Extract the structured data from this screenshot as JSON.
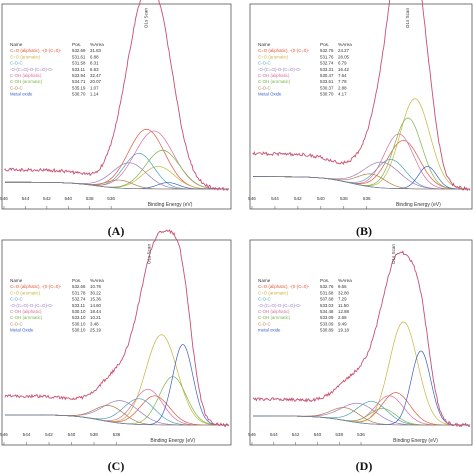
{
  "chart_data": [
    {
      "panel": "(A)",
      "type": "line",
      "xlabel": "Binding Energy (eV)",
      "xlim": [
        546,
        525
      ],
      "x_ticks": [
        "546",
        "544",
        "542",
        "540",
        "538",
        "536"
      ],
      "peak_label": "O1s Scan",
      "peak_label_x": 532.6,
      "legend_headers": [
        "Name",
        "Pos.",
        "%Area"
      ],
      "background": 0.12,
      "components": [
        {
          "name": "C=O (aliphatic), -(0-(C=0)-",
          "pos": "532.69",
          "area": "31.83",
          "color": "#e0563a",
          "center": 532.7,
          "height": 0.37,
          "width": 1.7
        },
        {
          "name": "C=O (aromatic)",
          "pos": "531.61",
          "area": "6.88",
          "color": "#c8b43c",
          "center": 531.6,
          "height": 0.14,
          "width": 1.5
        },
        {
          "name": "C-O-C",
          "pos": "531.58",
          "area": "8.31",
          "color": "#4aa3b8",
          "center": 533.4,
          "height": 0.22,
          "width": 1.4
        },
        {
          "name": "-O-(C=O)-O-(C=O)-O-",
          "pos": "533.11",
          "area": "6.63",
          "color": "#9c7bc0",
          "center": 534.3,
          "height": 0.16,
          "width": 1.6
        },
        {
          "name": "C-OH (aliphatic)",
          "pos": "533.94",
          "area": "32.47",
          "color": "#d86e9e",
          "center": 532.0,
          "height": 0.36,
          "width": 1.8
        },
        {
          "name": "C-OH (aromatic)",
          "pos": "534.71",
          "area": "20.07",
          "color": "#7ab34a",
          "center": 531.2,
          "height": 0.24,
          "width": 1.6
        },
        {
          "name": "C-O-C",
          "pos": "535.19",
          "area": "1.07",
          "color": "#b07b4a",
          "center": 535.2,
          "height": 0.05,
          "width": 1.2
        },
        {
          "name": "Metal oxide",
          "pos": "530.70",
          "area": "1.14",
          "color": "#3a5fc8",
          "center": 530.7,
          "height": 0.04,
          "width": 1.0
        }
      ]
    },
    {
      "panel": "(B)",
      "type": "line",
      "xlabel": "Binding Energy (eV)",
      "xlim": [
        546,
        527
      ],
      "x_ticks": [
        "546",
        "544",
        "542",
        "540",
        "538",
        "536"
      ],
      "peak_label": "O1s Scan",
      "peak_label_x": 532.3,
      "legend_headers": [
        "Name",
        "Pos.",
        "%Area"
      ],
      "background": 0.22,
      "components": [
        {
          "name": "C=O (aliphatic), -(0-(C=0)-",
          "pos": "532.75",
          "area": "24.27",
          "color": "#e0563a",
          "center": 532.8,
          "height": 0.3,
          "width": 1.4
        },
        {
          "name": "C=O (aromatic)",
          "pos": "531.76",
          "area": "28.05",
          "color": "#c8b43c",
          "center": 531.8,
          "height": 0.56,
          "width": 1.3
        },
        {
          "name": "C-O-C",
          "pos": "532.74",
          "area": "6.79",
          "color": "#4aa3b8",
          "center": 533.9,
          "height": 0.18,
          "width": 1.3
        },
        {
          "name": "-O-(C=O)-O-(C=O)-O-",
          "pos": "533.31",
          "area": "16.42",
          "color": "#9c7bc0",
          "center": 534.7,
          "height": 0.16,
          "width": 1.6
        },
        {
          "name": "C-OH (aliphatic)",
          "pos": "530.47",
          "area": "7.64",
          "color": "#d86e9e",
          "center": 533.2,
          "height": 0.34,
          "width": 1.3
        },
        {
          "name": "C-OH (aromatic)",
          "pos": "533.61",
          "area": "7.78",
          "color": "#7ab34a",
          "center": 532.4,
          "height": 0.44,
          "width": 1.2
        },
        {
          "name": "C-O-C",
          "pos": "530.37",
          "area": "2.88",
          "color": "#b07b4a",
          "center": 535.6,
          "height": 0.08,
          "width": 1.2
        },
        {
          "name": "Metal Oxide",
          "pos": "530.70",
          "area": "4.17",
          "color": "#3a5fc8",
          "center": 530.7,
          "height": 0.14,
          "width": 0.8
        }
      ]
    },
    {
      "panel": "(C)",
      "type": "line",
      "xlabel": "Binding Energy (eV)",
      "xlim": [
        546,
        526
      ],
      "x_ticks": [
        "546",
        "544",
        "542",
        "540",
        "538",
        "536"
      ],
      "peak_label": "O1s Scan",
      "peak_label_x": 533.0,
      "legend_headers": [
        "Name",
        "Pos.",
        "%Area"
      ],
      "background": 0.18,
      "components": [
        {
          "name": "C=O (aliphatic), -(0-(C=0)-",
          "pos": "532.66",
          "area": "10.76",
          "color": "#e0563a",
          "center": 532.6,
          "height": 0.18,
          "width": 1.3
        },
        {
          "name": "C=O (aromatic)",
          "pos": "531.78",
          "area": "30.22",
          "color": "#c8b43c",
          "center": 532.0,
          "height": 0.56,
          "width": 1.4
        },
        {
          "name": "C-O-C",
          "pos": "532.74",
          "area": "15.36",
          "color": "#4aa3b8",
          "center": 534.0,
          "height": 0.16,
          "width": 1.4
        },
        {
          "name": "-O-(C=O)-O-(C=O)-O-",
          "pos": "533.11",
          "area": "14.60",
          "color": "#9c7bc0",
          "center": 535.6,
          "height": 0.14,
          "width": 1.6
        },
        {
          "name": "C-OH (aliphatic)",
          "pos": "530.10",
          "area": "18.44",
          "color": "#d86e9e",
          "center": 533.2,
          "height": 0.22,
          "width": 1.3
        },
        {
          "name": "C-OH (aromatic)",
          "pos": "533.10",
          "area": "10.21",
          "color": "#7ab34a",
          "center": 531.0,
          "height": 0.3,
          "width": 1.2
        },
        {
          "name": "C-O-C",
          "pos": "530.10",
          "area": "3.48",
          "color": "#b07b4a",
          "center": 536.6,
          "height": 0.1,
          "width": 1.3
        },
        {
          "name": "Metal Oxide",
          "pos": "530.10",
          "area": "25.19",
          "color": "#3a5fc8",
          "center": 530.1,
          "height": 0.5,
          "width": 0.9
        }
      ]
    },
    {
      "panel": "(D)",
      "type": "line",
      "xlabel": "Binding Energy (eV)",
      "xlim": [
        546,
        526
      ],
      "x_ticks": [
        "546",
        "544",
        "542",
        "540",
        "538",
        "536"
      ],
      "peak_label": "O1s Scan",
      "peak_label_x": 532.9,
      "legend_headers": [
        "Name",
        "Pos.",
        "%Area"
      ],
      "background": 0.16,
      "components": [
        {
          "name": "C=O (aliphatic), -(0-(C=0)-",
          "pos": "532.76",
          "area": "9.66",
          "color": "#e0563a",
          "center": 532.8,
          "height": 0.2,
          "width": 1.3
        },
        {
          "name": "C=O (aromatic)",
          "pos": "531.68",
          "area": "32.80",
          "color": "#c8b43c",
          "center": 532.1,
          "height": 0.64,
          "width": 1.3
        },
        {
          "name": "C-O-C",
          "pos": "507.68",
          "area": "7.29",
          "color": "#4aa3b8",
          "center": 535.0,
          "height": 0.14,
          "width": 1.4
        },
        {
          "name": "-O-(C=O)-O-(C=O)-O-",
          "pos": "533.03",
          "area": "11.50",
          "color": "#9c7bc0",
          "center": 536.2,
          "height": 0.12,
          "width": 1.6
        },
        {
          "name": "C-OH (aliphatic)",
          "pos": "534.48",
          "area": "12.88",
          "color": "#d86e9e",
          "center": 533.4,
          "height": 0.18,
          "width": 1.3
        },
        {
          "name": "C-OH (aromatic)",
          "pos": "533.09",
          "area": "2.68",
          "color": "#7ab34a",
          "center": 534.0,
          "height": 0.1,
          "width": 1.2
        },
        {
          "name": "C-O-C",
          "pos": "533.09",
          "area": "9.49",
          "color": "#b07b4a",
          "center": 537.4,
          "height": 0.08,
          "width": 1.3
        },
        {
          "name": "metal oxide",
          "pos": "530.89",
          "area": "19.18",
          "color": "#3a5fc8",
          "center": 530.5,
          "height": 0.46,
          "width": 0.9
        }
      ]
    }
  ]
}
